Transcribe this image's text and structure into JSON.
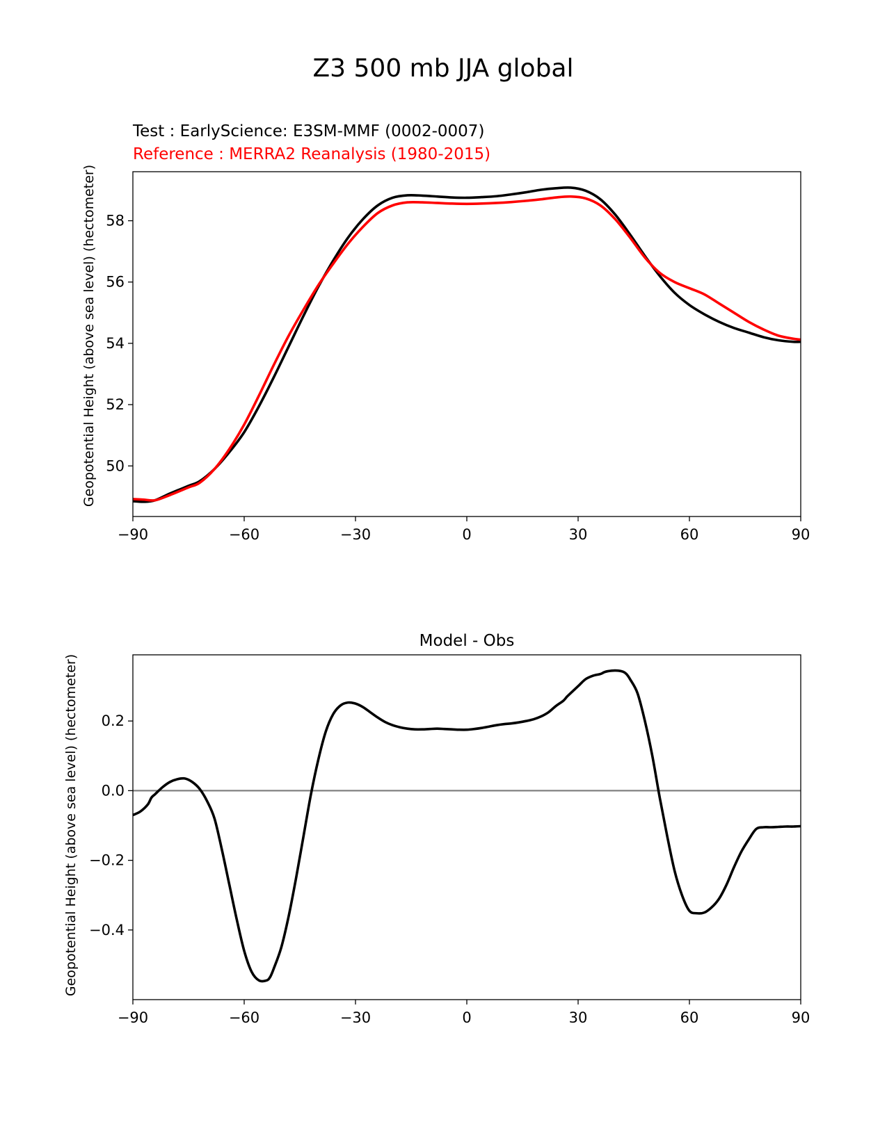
{
  "figure": {
    "title": "Z3 500 mb JJA global"
  },
  "chart_data": [
    {
      "type": "line",
      "legend_placement": "above plot, top-left",
      "test_label": "Test : EarlyScience: E3SM-MMF (0002-0007)",
      "reference_label": "Reference : MERRA2 Reanalysis (1980-2015)",
      "ylabel": "Geopotential Height (above sea level) (hectometer)",
      "xlabel": "",
      "xlim": [
        -90,
        90
      ],
      "ylim": [
        48.35,
        59.6
      ],
      "xticks": [
        -90,
        -60,
        -30,
        0,
        30,
        60,
        90
      ],
      "xtick_labels": [
        "−90",
        "−60",
        "−30",
        "0",
        "30",
        "60",
        "90"
      ],
      "yticks": [
        50,
        52,
        54,
        56,
        58
      ],
      "ytick_labels": [
        "50",
        "52",
        "54",
        "56",
        "58"
      ],
      "grid": false,
      "series": [
        {
          "name": "Test : EarlyScience: E3SM-MMF (0002-0007)",
          "color": "#000000",
          "x": [
            -90,
            -87,
            -84,
            -80,
            -75,
            -72,
            -68,
            -64,
            -60,
            -56,
            -52,
            -48,
            -44,
            -40,
            -36,
            -32,
            -28,
            -24,
            -20,
            -16,
            -12,
            -8,
            -4,
            0,
            4,
            8,
            12,
            16,
            20,
            24,
            28,
            32,
            36,
            40,
            44,
            48,
            52,
            56,
            60,
            64,
            68,
            72,
            76,
            80,
            84,
            88,
            90
          ],
          "y": [
            48.85,
            48.83,
            48.88,
            49.1,
            49.35,
            49.5,
            49.9,
            50.45,
            51.1,
            51.95,
            52.9,
            53.9,
            54.9,
            55.85,
            56.7,
            57.45,
            58.05,
            58.5,
            58.75,
            58.83,
            58.82,
            58.79,
            58.76,
            58.75,
            58.77,
            58.8,
            58.86,
            58.93,
            59.01,
            59.06,
            59.08,
            58.98,
            58.7,
            58.2,
            57.55,
            56.85,
            56.2,
            55.65,
            55.25,
            54.95,
            54.7,
            54.5,
            54.35,
            54.2,
            54.1,
            54.05,
            54.05
          ]
        },
        {
          "name": "Reference : MERRA2 Reanalysis (1980-2015)",
          "color": "#ff0000",
          "x": [
            -90,
            -87,
            -84,
            -80,
            -75,
            -72,
            -68,
            -64,
            -60,
            -56,
            -52,
            -48,
            -44,
            -40,
            -36,
            -32,
            -28,
            -24,
            -20,
            -16,
            -12,
            -8,
            -4,
            0,
            4,
            8,
            12,
            16,
            20,
            24,
            28,
            32,
            36,
            40,
            44,
            48,
            52,
            56,
            60,
            64,
            68,
            72,
            76,
            80,
            84,
            88,
            90
          ],
          "y": [
            48.92,
            48.9,
            48.88,
            49.05,
            49.3,
            49.45,
            49.9,
            50.55,
            51.35,
            52.3,
            53.3,
            54.25,
            55.1,
            55.9,
            56.6,
            57.25,
            57.8,
            58.25,
            58.5,
            58.6,
            58.6,
            58.58,
            58.56,
            58.55,
            58.56,
            58.58,
            58.61,
            58.65,
            58.7,
            58.76,
            58.79,
            58.73,
            58.5,
            58.05,
            57.45,
            56.8,
            56.3,
            56.0,
            55.8,
            55.6,
            55.3,
            55.0,
            54.7,
            54.45,
            54.25,
            54.15,
            54.12
          ]
        }
      ]
    },
    {
      "type": "line",
      "title": "Model - Obs",
      "ylabel": "Geopotential Height (above sea level) (hectometer)",
      "xlabel": "",
      "xlim": [
        -90,
        90
      ],
      "ylim": [
        -0.6,
        0.39
      ],
      "xticks": [
        -90,
        -60,
        -30,
        0,
        30,
        60,
        90
      ],
      "xtick_labels": [
        "−90",
        "−60",
        "−30",
        "0",
        "30",
        "60",
        "90"
      ],
      "yticks": [
        -0.4,
        -0.2,
        0.0,
        0.2
      ],
      "ytick_labels": [
        "−0.4",
        "−0.2",
        "0.0",
        "0.2"
      ],
      "grid": false,
      "zero_line_color": "#808080",
      "series": [
        {
          "color": "#000000",
          "x": [
            -90,
            -88,
            -86,
            -85,
            -84,
            -82,
            -80,
            -78,
            -76,
            -74,
            -72,
            -70,
            -68,
            -66,
            -64,
            -62,
            -60,
            -58,
            -56,
            -54,
            -53,
            -52,
            -50,
            -48,
            -46,
            -44,
            -42,
            -40,
            -38,
            -36,
            -34,
            -32,
            -30,
            -28,
            -26,
            -24,
            -22,
            -20,
            -18,
            -16,
            -14,
            -12,
            -10,
            -8,
            -6,
            -4,
            -2,
            0,
            2,
            4,
            6,
            8,
            10,
            12,
            14,
            16,
            18,
            20,
            22,
            24,
            26,
            27,
            28,
            30,
            32,
            34,
            36,
            37,
            38,
            40,
            42,
            43,
            44,
            46,
            48,
            50,
            52,
            54,
            56,
            58,
            60,
            62,
            64,
            66,
            68,
            70,
            72,
            74,
            76,
            78,
            80,
            82,
            84,
            86,
            88,
            90
          ],
          "y": [
            -0.07,
            -0.06,
            -0.04,
            -0.02,
            -0.01,
            0.01,
            0.025,
            0.033,
            0.035,
            0.025,
            0.005,
            -0.03,
            -0.08,
            -0.17,
            -0.27,
            -0.37,
            -0.46,
            -0.52,
            -0.545,
            -0.545,
            -0.535,
            -0.51,
            -0.45,
            -0.36,
            -0.25,
            -0.13,
            -0.01,
            0.09,
            0.17,
            0.22,
            0.245,
            0.253,
            0.25,
            0.24,
            0.225,
            0.21,
            0.197,
            0.188,
            0.182,
            0.178,
            0.176,
            0.176,
            0.177,
            0.178,
            0.177,
            0.176,
            0.175,
            0.175,
            0.177,
            0.18,
            0.184,
            0.188,
            0.191,
            0.193,
            0.196,
            0.2,
            0.205,
            0.213,
            0.225,
            0.243,
            0.258,
            0.27,
            0.28,
            0.3,
            0.32,
            0.33,
            0.335,
            0.34,
            0.343,
            0.345,
            0.342,
            0.335,
            0.32,
            0.28,
            0.2,
            0.1,
            -0.02,
            -0.13,
            -0.23,
            -0.3,
            -0.345,
            -0.352,
            -0.35,
            -0.335,
            -0.31,
            -0.27,
            -0.22,
            -0.175,
            -0.14,
            -0.11,
            -0.105,
            -0.105,
            -0.104,
            -0.103,
            -0.103,
            -0.102
          ]
        }
      ]
    }
  ]
}
